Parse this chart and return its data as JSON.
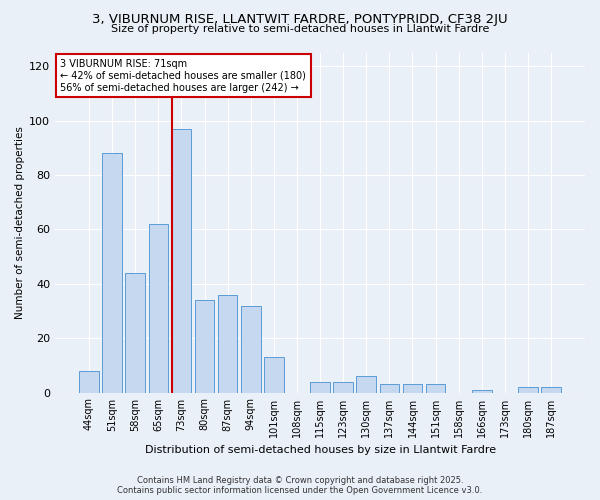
{
  "title1": "3, VIBURNUM RISE, LLANTWIT FARDRE, PONTYPRIDD, CF38 2JU",
  "title2": "Size of property relative to semi-detached houses in Llantwit Fardre",
  "xlabel": "Distribution of semi-detached houses by size in Llantwit Fardre",
  "ylabel": "Number of semi-detached properties",
  "categories": [
    "44sqm",
    "51sqm",
    "58sqm",
    "65sqm",
    "73sqm",
    "80sqm",
    "87sqm",
    "94sqm",
    "101sqm",
    "108sqm",
    "115sqm",
    "123sqm",
    "130sqm",
    "137sqm",
    "144sqm",
    "151sqm",
    "158sqm",
    "166sqm",
    "173sqm",
    "180sqm",
    "187sqm"
  ],
  "values": [
    8,
    88,
    44,
    62,
    97,
    34,
    36,
    32,
    13,
    0,
    4,
    4,
    6,
    3,
    3,
    3,
    0,
    1,
    0,
    2,
    2
  ],
  "bar_color": "#c5d8f0",
  "bar_edge_color": "#5b9bd5",
  "vline_color": "#cc0000",
  "annotation_title": "3 VIBURNUM RISE: 71sqm",
  "annotation_line1": "← 42% of semi-detached houses are smaller (180)",
  "annotation_line2": "56% of semi-detached houses are larger (242) →",
  "annotation_box_color": "#cc0000",
  "ylim": [
    0,
    125
  ],
  "yticks": [
    0,
    20,
    40,
    60,
    80,
    100,
    120
  ],
  "footer1": "Contains HM Land Registry data © Crown copyright and database right 2025.",
  "footer2": "Contains public sector information licensed under the Open Government Licence v3.0.",
  "bg_color": "#eaf0f8"
}
